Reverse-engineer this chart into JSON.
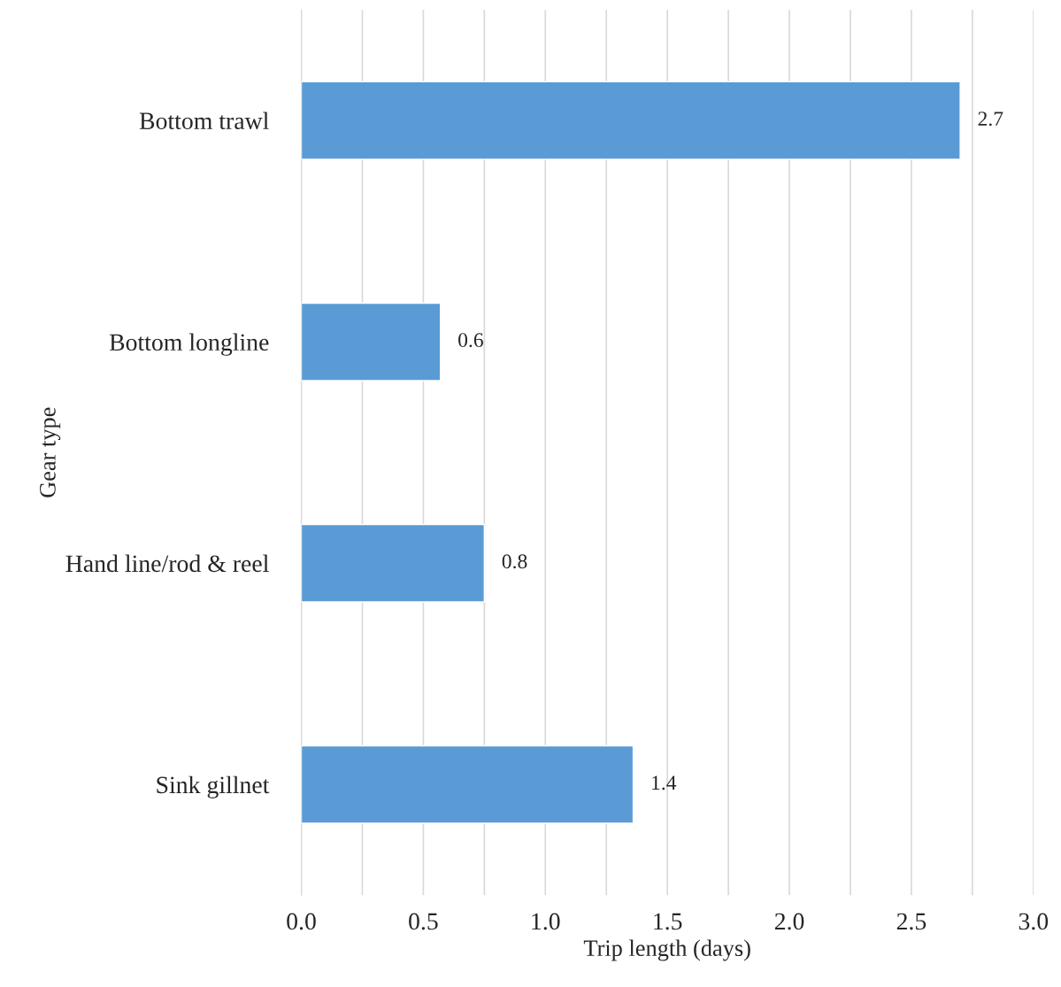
{
  "chart_data": {
    "type": "bar",
    "orientation": "horizontal",
    "categories": [
      "Bottom trawl",
      "Bottom longline",
      "Hand line/rod & reel",
      "Sink gillnet"
    ],
    "values": [
      2.7,
      0.57,
      0.75,
      1.36
    ],
    "value_labels": [
      "2.7",
      "0.6",
      "0.8",
      "1.4"
    ],
    "color": "#5b9bd5",
    "xlabel": "Trip length (days)",
    "ylabel": "Gear type",
    "xlim": [
      0,
      3.0
    ],
    "xticks": [
      {
        "value": 0,
        "label": "0.0"
      },
      {
        "value": 0.25,
        "label": null
      },
      {
        "value": 0.5,
        "label": "0.5"
      },
      {
        "value": 0.75,
        "label": null
      },
      {
        "value": 1,
        "label": "1.0"
      },
      {
        "value": 1.25,
        "label": null
      },
      {
        "value": 1.5,
        "label": "1.5"
      },
      {
        "value": 1.75,
        "label": null
      },
      {
        "value": 2,
        "label": "2.0"
      },
      {
        "value": 2.25,
        "label": null
      },
      {
        "value": 2.5,
        "label": "2.5"
      },
      {
        "value": 2.75,
        "label": null
      },
      {
        "value": 3,
        "label": "3.0"
      }
    ],
    "grid": "x"
  }
}
